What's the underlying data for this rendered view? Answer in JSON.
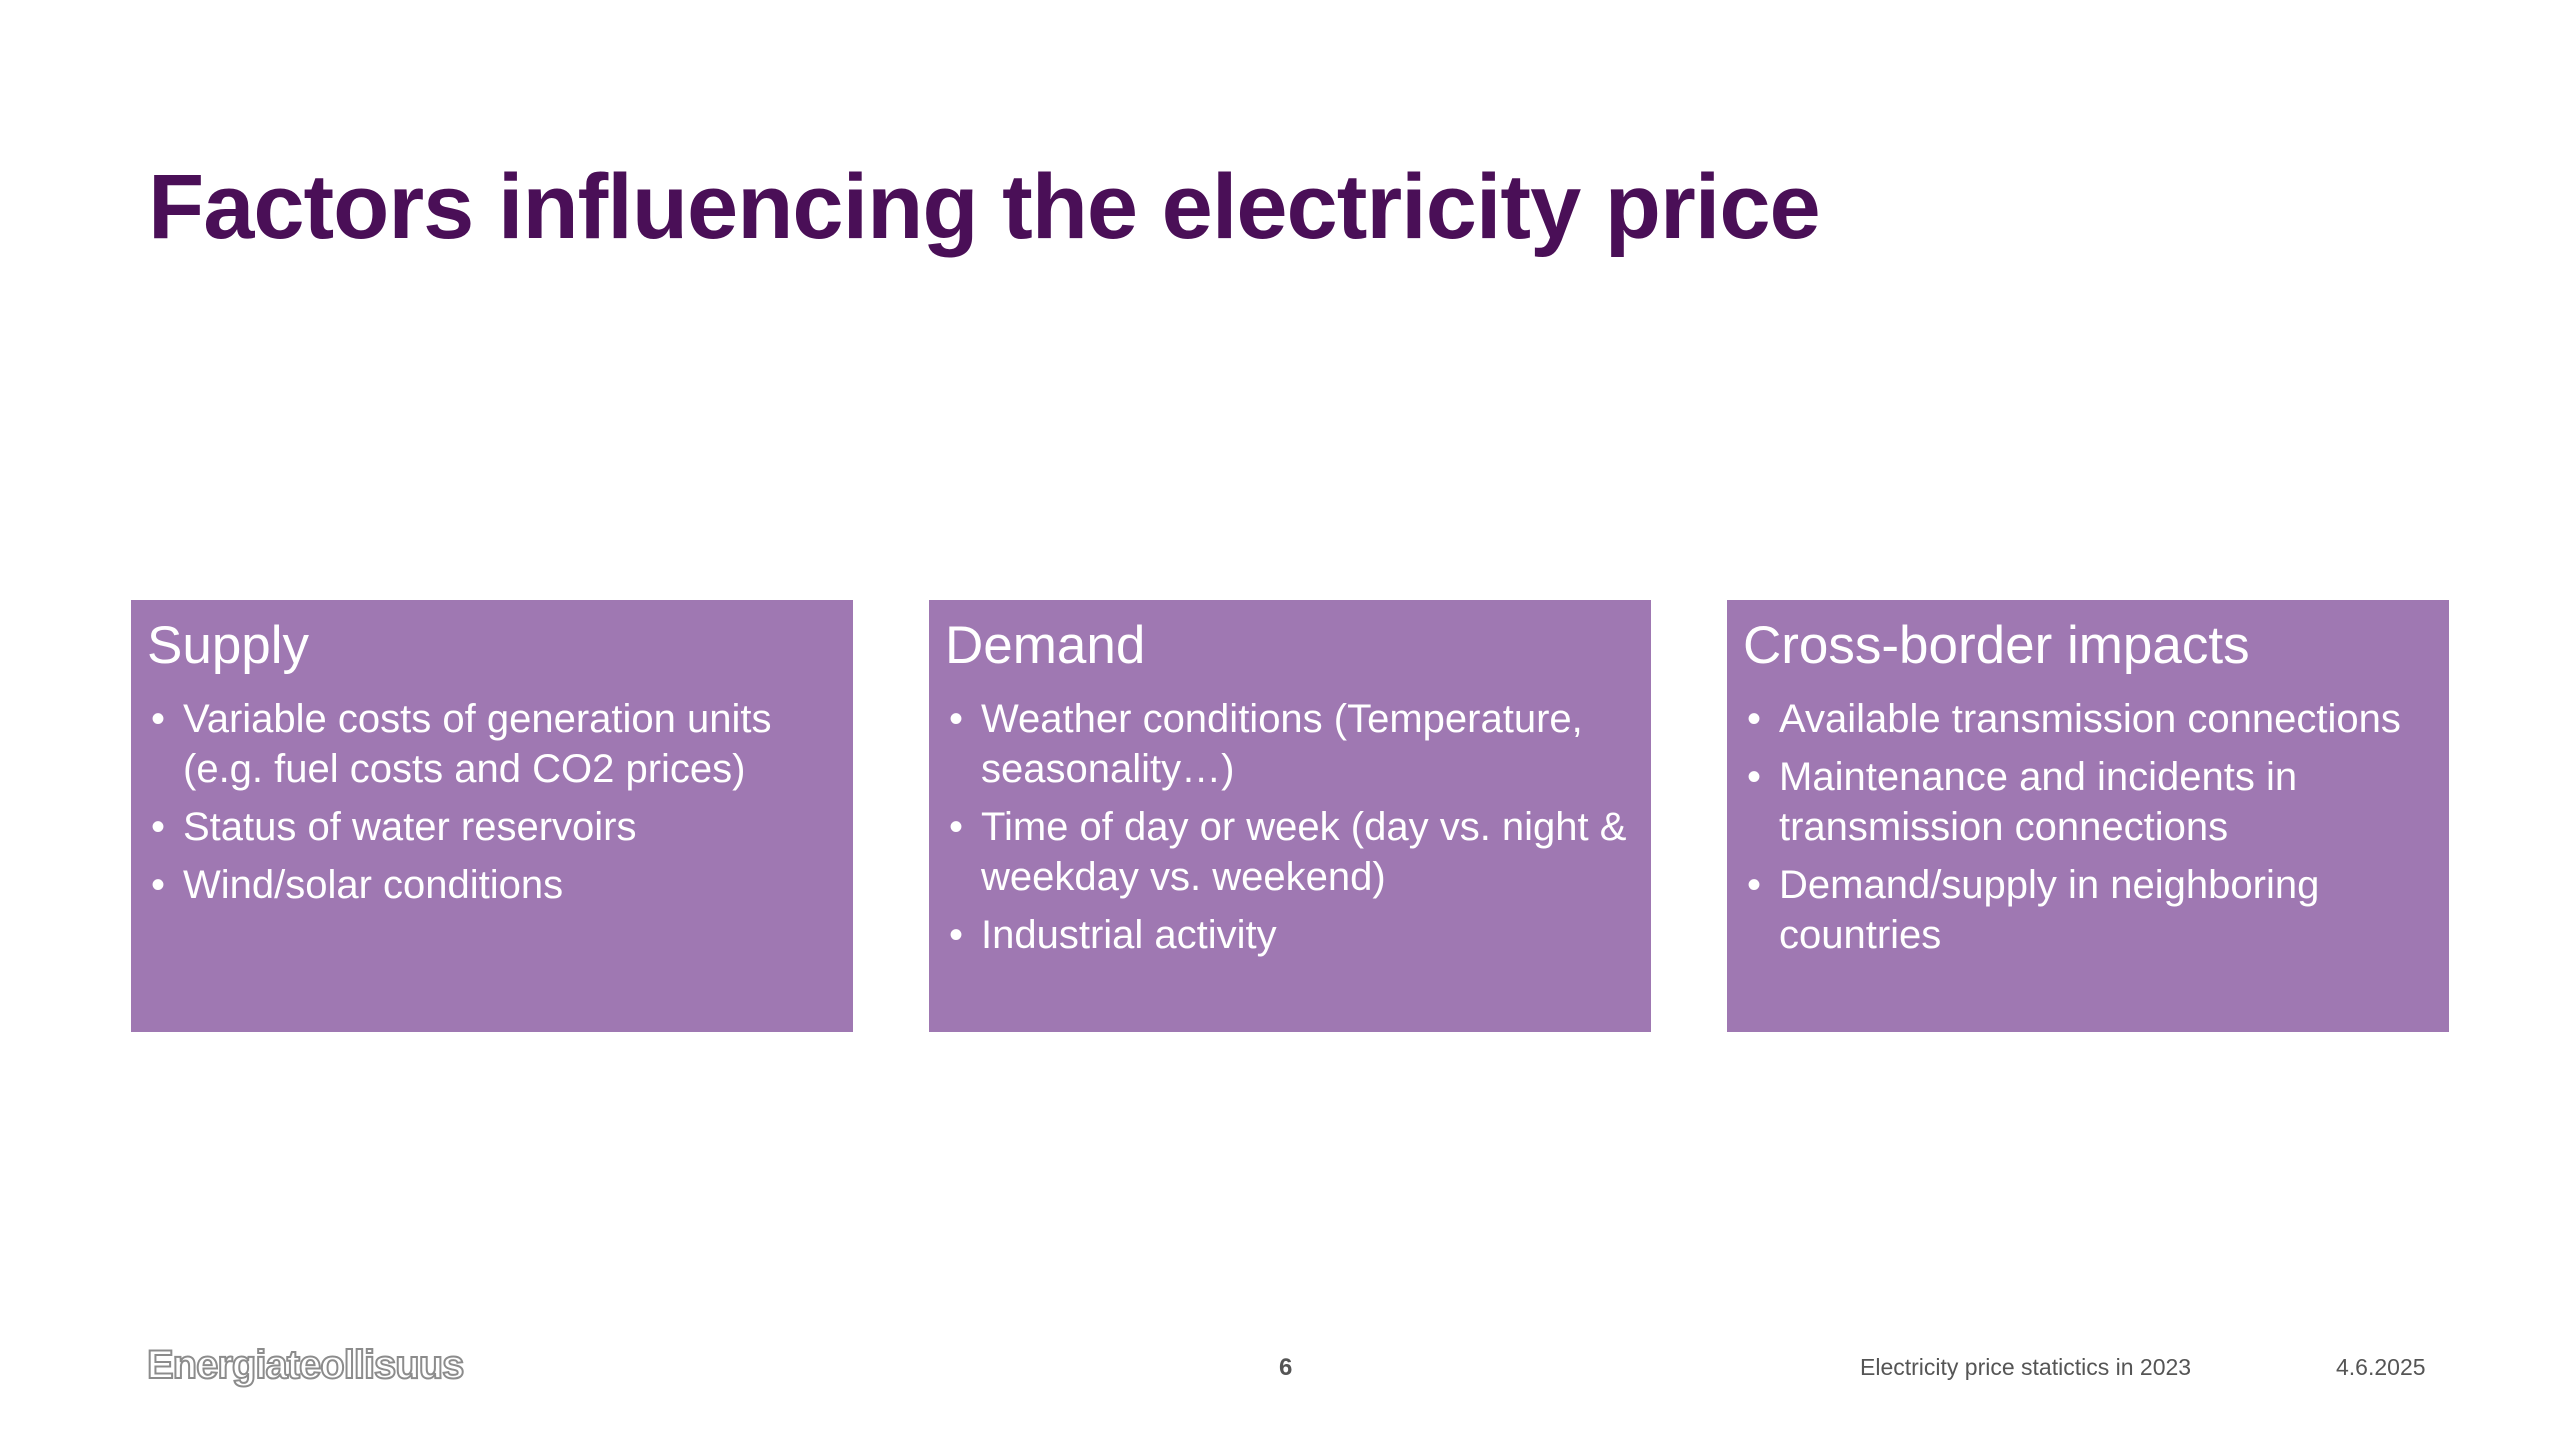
{
  "title": "Factors influencing the electricity price",
  "boxes": [
    {
      "heading": "Supply",
      "items": [
        "Variable costs of generation units (e.g. fuel costs and CO2 prices)",
        "Status of water reservoirs",
        "Wind/solar conditions"
      ]
    },
    {
      "heading": "Demand",
      "items": [
        "Weather conditions (Temperature, seasonality…)",
        "Time of day or week (day vs. night & weekday vs. weekend)",
        "Industrial activity"
      ]
    },
    {
      "heading": "Cross-border impacts",
      "items": [
        "Available transmission connections",
        "Maintenance and incidents in transmission connections",
        "Demand/supply in neighboring countries"
      ]
    }
  ],
  "footer": {
    "logo_text": "Energiateollisuus",
    "page_number": "6",
    "document_title": "Electricity price statictics in 2023",
    "date": "4.6.2025"
  },
  "colors": {
    "title": "#4a0f57",
    "box_background": "#9f78b2",
    "box_text": "#ffffff",
    "footer_text": "#555555"
  },
  "bullet_glyph": "•"
}
